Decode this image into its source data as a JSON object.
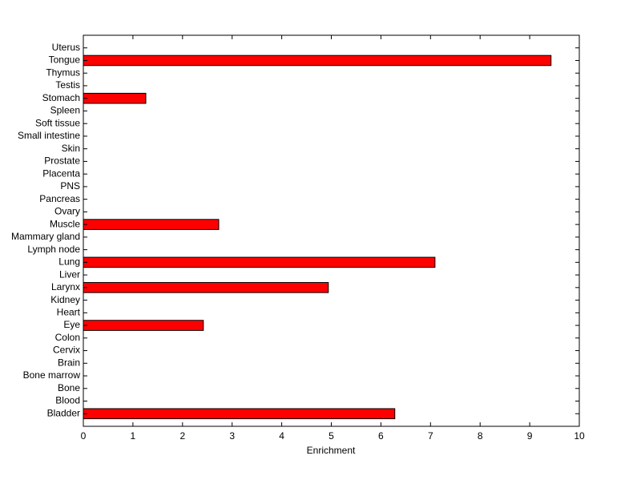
{
  "chart_data": {
    "type": "barh",
    "xlabel": "Enrichment",
    "categories": [
      "Bladder",
      "Blood",
      "Bone",
      "Bone marrow",
      "Brain",
      "Cervix",
      "Colon",
      "Eye",
      "Heart",
      "Kidney",
      "Larynx",
      "Liver",
      "Lung",
      "Lymph node",
      "Mammary gland",
      "Muscle",
      "Ovary",
      "Pancreas",
      "PNS",
      "Placenta",
      "Prostate",
      "Skin",
      "Small intestine",
      "Soft tissue",
      "Spleen",
      "Stomach",
      "Testis",
      "Thymus",
      "Tongue",
      "Uterus"
    ],
    "values": [
      6.28,
      0,
      0,
      0,
      0,
      0,
      0,
      2.42,
      0,
      0,
      4.94,
      0,
      7.09,
      0,
      0,
      2.73,
      0,
      0,
      0,
      0,
      0,
      0,
      0,
      0,
      0,
      1.26,
      0,
      0,
      9.43,
      0
    ],
    "color": "#ff0000",
    "xlim": [
      0,
      10
    ],
    "xticks": [
      0,
      1,
      2,
      3,
      4,
      5,
      6,
      7,
      8,
      9,
      10
    ]
  }
}
